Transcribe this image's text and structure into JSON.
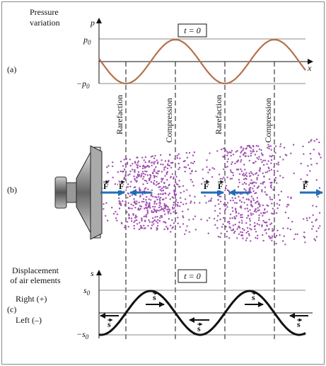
{
  "panel_a": {
    "label": "(a)",
    "title_lines": [
      "Pressure",
      "variation"
    ],
    "axis_y": "p",
    "axis_x": "x",
    "time": "t = 0",
    "upper": {
      "symbol": "p",
      "sub": "0"
    },
    "lower": {
      "symbol": "−p",
      "sub": "0"
    }
  },
  "zones": [
    "Rarefaction",
    "Compression",
    "Rarefaction",
    "Compression"
  ],
  "panel_b": {
    "label": "(b)",
    "force": "F"
  },
  "panel_c": {
    "label": "(c)",
    "title_lines": [
      "Displacement",
      "of air elements"
    ],
    "axis_y": "s",
    "time": "t = 0",
    "upper": {
      "symbol": "s",
      "sub": "0"
    },
    "lower": {
      "symbol": "−s",
      "sub": "0"
    },
    "right": "Right (+)",
    "left": "Left (–)",
    "displacement": "s"
  }
}
